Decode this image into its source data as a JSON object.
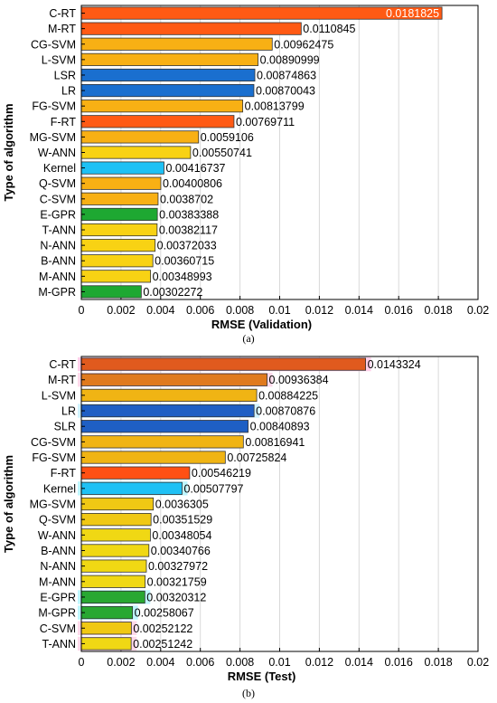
{
  "chart_data": [
    {
      "type": "bar",
      "orientation": "horizontal",
      "caption": "(a)",
      "xlabel": "RMSE (Validation)",
      "ylabel": "Type of algorithm",
      "xlim": [
        0,
        0.02
      ],
      "xticks": [
        "0",
        "0.002",
        "0.004",
        "0.006",
        "0.008",
        "0.01",
        "0.012",
        "0.014",
        "0.016",
        "0.018",
        "0.02"
      ],
      "grid": true,
      "categories": [
        "C-RT",
        "M-RT",
        "CG-SVM",
        "L-SVM",
        "LSR",
        "LR",
        "FG-SVM",
        "F-RT",
        "MG-SVM",
        "W-ANN",
        "Kernel",
        "Q-SVM",
        "C-SVM",
        "E-GPR",
        "T-ANN",
        "N-ANN",
        "B-ANN",
        "M-ANN",
        "M-GPR"
      ],
      "values": [
        0.0181825,
        0.0110845,
        0.00962475,
        0.00890999,
        0.00874863,
        0.00870043,
        0.00813799,
        0.00769711,
        0.0059106,
        0.00550741,
        0.00416737,
        0.00400806,
        0.0038702,
        0.00383388,
        0.00382117,
        0.00372033,
        0.00360715,
        0.00348993,
        0.00302272
      ],
      "value_labels": [
        "0.0181825",
        "0.0110845",
        "0.00962475",
        "0.00890999",
        "0.00874863",
        "0.00870043",
        "0.00813799",
        "0.00769711",
        "0.0059106",
        "0.00550741",
        "0.00416737",
        "0.00400806",
        "0.0038702",
        "0.00383388",
        "0.00382117",
        "0.00372033",
        "0.00360715",
        "0.00348993",
        "0.00302272"
      ],
      "colors": [
        "#ff5a14",
        "#ff5a14",
        "#f8b014",
        "#f8b014",
        "#1a6fcf",
        "#1a6fcf",
        "#f8b014",
        "#ff5a14",
        "#f8b014",
        "#f8d214",
        "#1ec1f5",
        "#f8b014",
        "#f8b014",
        "#1ea832",
        "#f8d214",
        "#f8d214",
        "#f8d214",
        "#f8d214",
        "#1ea832"
      ]
    },
    {
      "type": "bar",
      "orientation": "horizontal",
      "caption": "(b)",
      "xlabel": "RMSE (Test)",
      "ylabel": "Type of algorithm",
      "xlim": [
        0,
        0.02
      ],
      "xticks": [
        "0",
        "0.002",
        "0.004",
        "0.006",
        "0.008",
        "0.01",
        "0.012",
        "0.014",
        "0.016",
        "0.018",
        "0.02"
      ],
      "grid": true,
      "categories": [
        "C-RT",
        "M-RT",
        "L-SVM",
        "LR",
        "SLR",
        "CG-SVM",
        "FG-SVM",
        "F-RT",
        "Kernel",
        "MG-SVM",
        "Q-SVM",
        "W-ANN",
        "B-ANN",
        "N-ANN",
        "M-ANN",
        "E-GPR",
        "M-GPR",
        "C-SVM",
        "T-ANN"
      ],
      "values": [
        0.0143324,
        0.00936384,
        0.00884225,
        0.00870876,
        0.00840893,
        0.00816941,
        0.00725824,
        0.00546219,
        0.00507797,
        0.0036305,
        0.00351529,
        0.00348054,
        0.00340766,
        0.00327972,
        0.00321759,
        0.00320312,
        0.00258067,
        0.00252122,
        0.00251242
      ],
      "value_labels": [
        "0.0143324",
        "0.00936384",
        "0.00884225",
        "0.00870876",
        "0.00840893",
        "0.00816941",
        "0.00725824",
        "0.00546219",
        "0.00507797",
        "0.0036305",
        "0.00351529",
        "0.00348054",
        "0.00340766",
        "0.00327972",
        "0.00321759",
        "0.00320312",
        "0.00258067",
        "0.00252122",
        "0.00251242"
      ],
      "colors": [
        "#e05a1e",
        "#e07a1e",
        "#f0b414",
        "#1f5fc4",
        "#1f5fc4",
        "#f0b414",
        "#f0b414",
        "#ff5014",
        "#1ec1f5",
        "#f0c814",
        "#f0c814",
        "#f0d814",
        "#f0d814",
        "#f0d814",
        "#f0d814",
        "#28a832",
        "#28a832",
        "#f0c814",
        "#f0d814"
      ],
      "halo_colors": [
        "#ffc8e6",
        "#ffd2e6",
        "#ffffff",
        "#c8f0ff",
        "#ffffff",
        "#ffffff",
        "#ffffff",
        "#ffffff",
        "#b4f5ff",
        "#ffffff",
        "#ffffff",
        "#ffffff",
        "#ffffff",
        "#ffffff",
        "#ffffff",
        "#b4f5ff",
        "#b4f5ff",
        "#ffd2e6",
        "#ffd2e6"
      ]
    }
  ]
}
